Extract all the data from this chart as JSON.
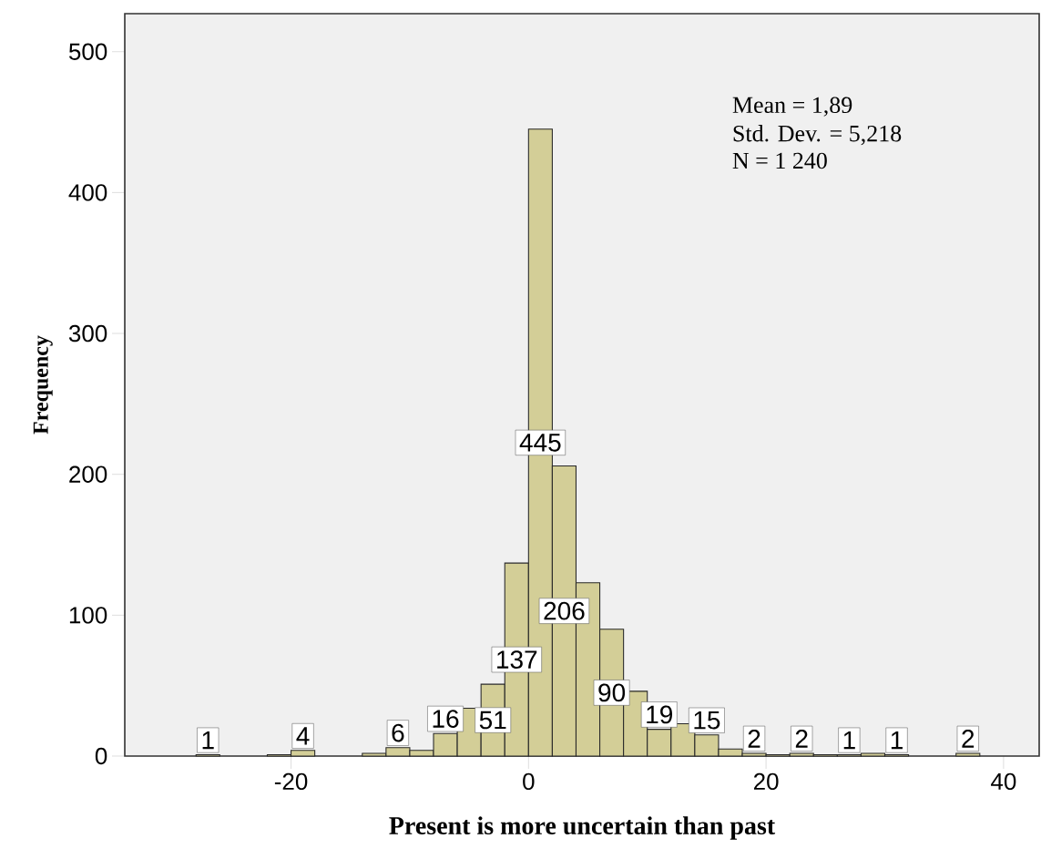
{
  "chart_data": {
    "type": "histogram",
    "xlabel": "Present is more uncertain than past",
    "ylabel": "Frequency",
    "bins": [
      -28,
      -26,
      -24,
      -22,
      -20,
      -18,
      -16,
      -14,
      -12,
      -10,
      -8,
      -6,
      -4,
      -2,
      0,
      2,
      4,
      6,
      8,
      10,
      12,
      14,
      16,
      18,
      20,
      22,
      24,
      26,
      28,
      30,
      32,
      34,
      36,
      38
    ],
    "values": [
      1,
      0,
      0,
      1,
      4,
      0,
      0,
      2,
      6,
      4,
      16,
      34,
      51,
      137,
      445,
      206,
      123,
      90,
      46,
      19,
      23,
      15,
      5,
      2,
      1,
      2,
      1,
      1,
      2,
      1,
      0,
      0,
      2
    ],
    "value_labels": [
      "1",
      null,
      null,
      null,
      "4",
      null,
      null,
      null,
      "6",
      null,
      "16",
      null,
      "51",
      "137",
      "445",
      "206",
      null,
      "90",
      null,
      "19",
      null,
      "15",
      null,
      "2",
      null,
      "2",
      null,
      "1",
      null,
      "1",
      null,
      null,
      "2"
    ],
    "color": "#d3ce97",
    "xlim": [
      -34,
      43
    ],
    "ylim": [
      0,
      527
    ],
    "xticks": [
      -20,
      0,
      20,
      40
    ],
    "yticks": [
      0,
      100,
      200,
      300,
      400,
      500
    ],
    "annotations": [
      "Mean = 1,89",
      "Std. Dev. = 5,218",
      "N = 1 240"
    ]
  }
}
